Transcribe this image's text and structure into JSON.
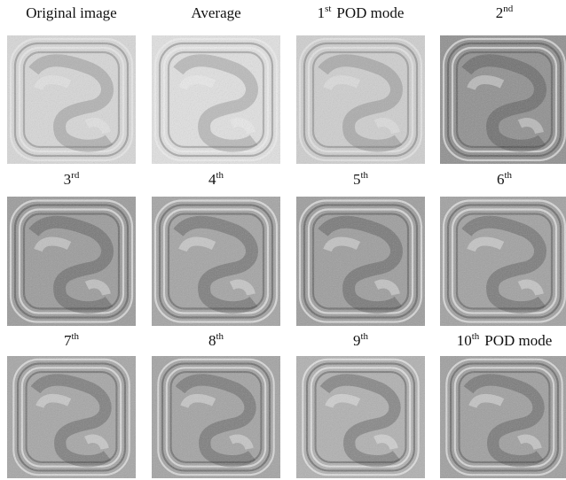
{
  "panels": [
    {
      "label": "Original image"
    },
    {
      "label": "Average"
    },
    {
      "num": "1",
      "sup": "st",
      "rest": "POD mode"
    },
    {
      "num": "2",
      "sup": "nd"
    },
    {
      "num": "3",
      "sup": "rd"
    },
    {
      "num": "4",
      "sup": "th"
    },
    {
      "num": "5",
      "sup": "th"
    },
    {
      "num": "6",
      "sup": "th"
    },
    {
      "num": "7",
      "sup": "th"
    },
    {
      "num": "8",
      "sup": "th"
    },
    {
      "num": "9",
      "sup": "th"
    },
    {
      "num": "10",
      "sup": "th",
      "rest": "POD mode"
    }
  ]
}
